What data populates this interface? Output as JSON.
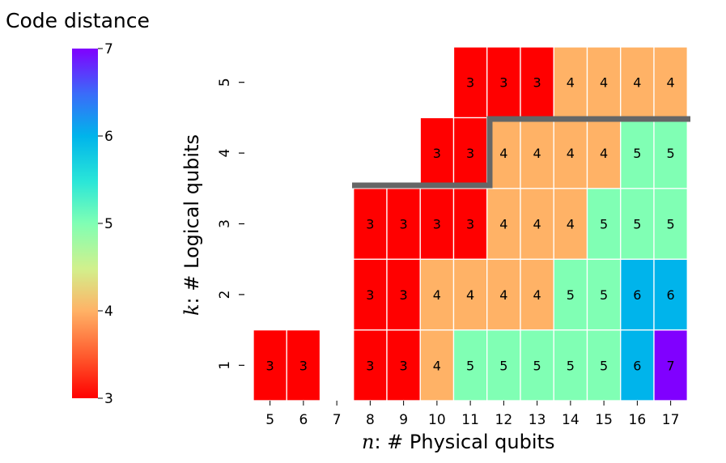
{
  "chart_data": {
    "type": "heatmap",
    "xlabel_var": "n",
    "xlabel_rest": ": # Physical qubits",
    "ylabel_var": "k",
    "ylabel_rest": ": # Logical qubits",
    "x_categories": [
      "5",
      "6",
      "7",
      "8",
      "9",
      "10",
      "11",
      "12",
      "13",
      "14",
      "15",
      "16",
      "17"
    ],
    "y_categories": [
      "1",
      "2",
      "3",
      "4",
      "5"
    ],
    "colorbar": {
      "title": "Code distance",
      "range": [
        3,
        7
      ],
      "ticks": [
        "3",
        "4",
        "5",
        "6",
        "7"
      ]
    },
    "values": [
      [
        3,
        3,
        null,
        3,
        3,
        4,
        5,
        5,
        5,
        5,
        5,
        6,
        7
      ],
      [
        null,
        null,
        null,
        3,
        3,
        4,
        4,
        4,
        4,
        5,
        5,
        6,
        6
      ],
      [
        null,
        null,
        null,
        3,
        3,
        3,
        3,
        4,
        4,
        4,
        5,
        5,
        5
      ],
      [
        null,
        null,
        null,
        null,
        null,
        3,
        3,
        4,
        4,
        4,
        4,
        5,
        5
      ],
      [
        null,
        null,
        null,
        null,
        null,
        null,
        3,
        3,
        3,
        4,
        4,
        4,
        4
      ]
    ],
    "colors": {
      "3": "#ff0000",
      "4": "#ffb266",
      "5": "#80ffb4",
      "6": "#00b4eb",
      "7": "#8000ff"
    },
    "boundary_color": "#666666"
  }
}
